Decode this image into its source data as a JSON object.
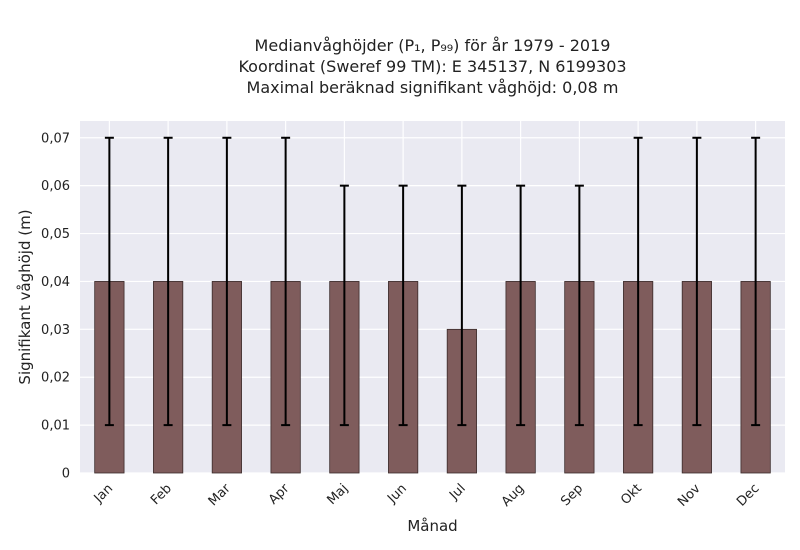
{
  "chart_data": {
    "type": "bar",
    "title_lines": [
      "Medianvåghöjder (P₁, P₉₉) för år 1979 - 2019",
      "Koordinat (Sweref 99 TM): E 345137, N 6199303",
      "Maximal beräknad signifikant våghöjd: 0,08 m"
    ],
    "xlabel": "Månad",
    "ylabel": "Signifikant våghöjd (m)",
    "categories": [
      "Jan",
      "Feb",
      "Mar",
      "Apr",
      "Maj",
      "Jun",
      "Jul",
      "Aug",
      "Sep",
      "Okt",
      "Nov",
      "Dec"
    ],
    "values": [
      0.04,
      0.04,
      0.04,
      0.04,
      0.04,
      0.04,
      0.03,
      0.04,
      0.04,
      0.04,
      0.04,
      0.04
    ],
    "error_low": [
      0.01,
      0.01,
      0.01,
      0.01,
      0.01,
      0.01,
      0.01,
      0.01,
      0.01,
      0.01,
      0.01,
      0.01
    ],
    "error_high": [
      0.07,
      0.07,
      0.07,
      0.07,
      0.06,
      0.06,
      0.06,
      0.06,
      0.06,
      0.07,
      0.07,
      0.07
    ],
    "ylim": [
      0,
      0.0735
    ],
    "yticks": [
      0,
      0.01,
      0.02,
      0.03,
      0.04,
      0.05,
      0.06,
      0.07
    ],
    "ytick_labels": [
      "0",
      "0,01",
      "0,02",
      "0,03",
      "0,04",
      "0,05",
      "0,06",
      "0,07"
    ],
    "grid": true,
    "colors": {
      "bar": "#7f5c5c",
      "bar_edge": "#3a2a2a",
      "error": "#000000",
      "plot_bg": "#eaeaf2",
      "grid": "#ffffff"
    }
  }
}
